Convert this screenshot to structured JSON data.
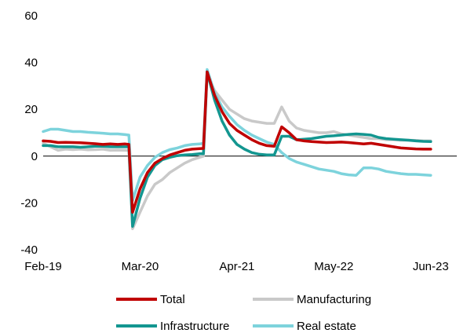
{
  "chart_data": {
    "type": "line",
    "title": "",
    "xlabel": "",
    "ylabel": "",
    "ylim": [
      -40,
      60
    ],
    "yticks": [
      -40,
      -20,
      0,
      20,
      40,
      60
    ],
    "xticks": [
      {
        "label": "Feb-19",
        "x": 0
      },
      {
        "label": "Mar-20",
        "x": 13
      },
      {
        "label": "Apr-21",
        "x": 26
      },
      {
        "label": "May-22",
        "x": 39
      },
      {
        "label": "Jun-23",
        "x": 52
      }
    ],
    "x_unit": "months since Feb-19",
    "grid": false,
    "legend": "bottom",
    "series": [
      {
        "name": "Total",
        "color": "#c00000",
        "points": [
          [
            0,
            6.5
          ],
          [
            1,
            6.3
          ],
          [
            2,
            5.8
          ],
          [
            3,
            5.9
          ],
          [
            4,
            5.8
          ],
          [
            5,
            5.7
          ],
          [
            6,
            5.5
          ],
          [
            7,
            5.3
          ],
          [
            8,
            5.0
          ],
          [
            9,
            5.2
          ],
          [
            10,
            5.0
          ],
          [
            11,
            5.2
          ],
          [
            11.5,
            5.0
          ],
          [
            12,
            -24
          ],
          [
            13,
            -14
          ],
          [
            14,
            -7
          ],
          [
            15,
            -3
          ],
          [
            16,
            -1
          ],
          [
            17,
            0.5
          ],
          [
            18,
            1.5
          ],
          [
            19,
            2.5
          ],
          [
            20,
            3.0
          ],
          [
            21,
            3.2
          ],
          [
            21.5,
            3.3
          ],
          [
            22,
            36
          ],
          [
            23,
            26
          ],
          [
            24,
            19
          ],
          [
            25,
            14
          ],
          [
            26,
            11
          ],
          [
            27,
            9
          ],
          [
            28,
            7
          ],
          [
            29,
            5.5
          ],
          [
            30,
            4.5
          ],
          [
            31,
            4.2
          ],
          [
            32,
            12.5
          ],
          [
            33,
            10
          ],
          [
            34,
            7
          ],
          [
            35,
            6.5
          ],
          [
            36,
            6.2
          ],
          [
            37,
            6
          ],
          [
            38,
            5.8
          ],
          [
            39,
            5.9
          ],
          [
            40,
            6
          ],
          [
            41,
            5.8
          ],
          [
            42,
            5.5
          ],
          [
            43,
            5.2
          ],
          [
            44,
            5.5
          ],
          [
            45,
            5.0
          ],
          [
            46,
            4.5
          ],
          [
            47,
            4.0
          ],
          [
            48,
            3.5
          ],
          [
            49,
            3.3
          ],
          [
            50,
            3.1
          ],
          [
            51,
            3.0
          ],
          [
            52,
            3.0
          ]
        ]
      },
      {
        "name": "Manufacturing",
        "color": "#c9c9c9",
        "points": [
          [
            0,
            5.5
          ],
          [
            1,
            4.0
          ],
          [
            2,
            2.5
          ],
          [
            3,
            3.0
          ],
          [
            4,
            2.8
          ],
          [
            5,
            3.0
          ],
          [
            6,
            2.7
          ],
          [
            7,
            2.8
          ],
          [
            8,
            3.0
          ],
          [
            9,
            2.5
          ],
          [
            10,
            2.6
          ],
          [
            11,
            2.5
          ],
          [
            11.5,
            2.4
          ],
          [
            12,
            -31
          ],
          [
            13,
            -24
          ],
          [
            14,
            -17
          ],
          [
            15,
            -12
          ],
          [
            16,
            -10
          ],
          [
            17,
            -7
          ],
          [
            18,
            -5
          ],
          [
            19,
            -3
          ],
          [
            20,
            -1.5
          ],
          [
            21,
            -0.5
          ],
          [
            21.5,
            0
          ],
          [
            22,
            35
          ],
          [
            23,
            28
          ],
          [
            24,
            24
          ],
          [
            25,
            20
          ],
          [
            26,
            18
          ],
          [
            27,
            16
          ],
          [
            28,
            15
          ],
          [
            29,
            14.5
          ],
          [
            30,
            14
          ],
          [
            31,
            14
          ],
          [
            32,
            21
          ],
          [
            33,
            15
          ],
          [
            34,
            12
          ],
          [
            35,
            11
          ],
          [
            36,
            10.5
          ],
          [
            37,
            10
          ],
          [
            38,
            10
          ],
          [
            39,
            10.5
          ],
          [
            40,
            9.5
          ],
          [
            41,
            9
          ],
          [
            42,
            8.5
          ],
          [
            43,
            8
          ],
          [
            44,
            7.5
          ],
          [
            45,
            7.5
          ],
          [
            46,
            7
          ],
          [
            47,
            7
          ],
          [
            48,
            6.8
          ],
          [
            49,
            6.8
          ],
          [
            50,
            6.7
          ],
          [
            51,
            6.5
          ],
          [
            52,
            6.5
          ]
        ]
      },
      {
        "name": "Infrastructure",
        "color": "#139690",
        "points": [
          [
            0,
            4.5
          ],
          [
            1,
            4.5
          ],
          [
            2,
            4.0
          ],
          [
            3,
            4.0
          ],
          [
            4,
            4.0
          ],
          [
            5,
            3.8
          ],
          [
            6,
            4.0
          ],
          [
            7,
            4.2
          ],
          [
            8,
            4.2
          ],
          [
            9,
            4.0
          ],
          [
            10,
            4.0
          ],
          [
            11,
            4.0
          ],
          [
            11.5,
            4.0
          ],
          [
            12,
            -30
          ],
          [
            13,
            -18
          ],
          [
            14,
            -9
          ],
          [
            15,
            -4
          ],
          [
            16,
            -1.5
          ],
          [
            17,
            -0.5
          ],
          [
            18,
            0.2
          ],
          [
            19,
            0.5
          ],
          [
            20,
            0.7
          ],
          [
            21,
            1.0
          ],
          [
            21.5,
            1.0
          ],
          [
            22,
            36
          ],
          [
            23,
            24
          ],
          [
            24,
            15
          ],
          [
            25,
            9
          ],
          [
            26,
            5
          ],
          [
            27,
            3
          ],
          [
            28,
            1.5
          ],
          [
            29,
            0.8
          ],
          [
            30,
            0.5
          ],
          [
            31,
            0.5
          ],
          [
            32,
            8.5
          ],
          [
            33,
            8.5
          ],
          [
            34,
            7
          ],
          [
            35,
            7.2
          ],
          [
            36,
            7.5
          ],
          [
            37,
            8
          ],
          [
            38,
            8.5
          ],
          [
            39,
            8.7
          ],
          [
            40,
            9
          ],
          [
            41,
            9.3
          ],
          [
            42,
            9.5
          ],
          [
            43,
            9.3
          ],
          [
            44,
            9
          ],
          [
            45,
            8
          ],
          [
            46,
            7.5
          ],
          [
            47,
            7.2
          ],
          [
            48,
            7
          ],
          [
            49,
            6.8
          ],
          [
            50,
            6.5
          ],
          [
            51,
            6.3
          ],
          [
            52,
            6.2
          ]
        ]
      },
      {
        "name": "Real estate",
        "color": "#7dd3dc",
        "points": [
          [
            0,
            10.5
          ],
          [
            1,
            11.5
          ],
          [
            2,
            11.5
          ],
          [
            3,
            11
          ],
          [
            4,
            10.5
          ],
          [
            5,
            10.5
          ],
          [
            6,
            10.2
          ],
          [
            7,
            10
          ],
          [
            8,
            9.8
          ],
          [
            9,
            9.5
          ],
          [
            10,
            9.5
          ],
          [
            11,
            9.2
          ],
          [
            11.5,
            9.0
          ],
          [
            12,
            -19
          ],
          [
            13,
            -9
          ],
          [
            14,
            -4
          ],
          [
            15,
            -0.5
          ],
          [
            16,
            1.5
          ],
          [
            17,
            2.8
          ],
          [
            18,
            3.5
          ],
          [
            19,
            4.5
          ],
          [
            20,
            5
          ],
          [
            21,
            5.2
          ],
          [
            21.5,
            5.5
          ],
          [
            22,
            37
          ],
          [
            23,
            27
          ],
          [
            24,
            21
          ],
          [
            25,
            17
          ],
          [
            26,
            13.5
          ],
          [
            27,
            11
          ],
          [
            28,
            9
          ],
          [
            29,
            7.5
          ],
          [
            30,
            6
          ],
          [
            31,
            5
          ],
          [
            32,
            1.5
          ],
          [
            33,
            -1
          ],
          [
            34,
            -2.5
          ],
          [
            35,
            -3.5
          ],
          [
            36,
            -4.5
          ],
          [
            37,
            -5.5
          ],
          [
            38,
            -6
          ],
          [
            39,
            -6.5
          ],
          [
            40,
            -7.5
          ],
          [
            41,
            -8
          ],
          [
            42,
            -8.2
          ],
          [
            43,
            -5
          ],
          [
            44,
            -5
          ],
          [
            45,
            -5.5
          ],
          [
            46,
            -6.5
          ],
          [
            47,
            -7
          ],
          [
            48,
            -7.5
          ],
          [
            49,
            -7.8
          ],
          [
            50,
            -7.8
          ],
          [
            51,
            -8
          ],
          [
            52,
            -8.2
          ]
        ]
      }
    ]
  }
}
